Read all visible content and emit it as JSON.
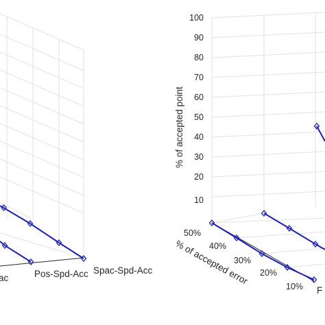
{
  "chart_data": [
    {
      "panel": "left",
      "type": "line",
      "view": "3d",
      "grid": true,
      "visible_labels": [
        "ac",
        "Pos-Spd-Acc",
        "Spac-Spd-Acc"
      ],
      "series": [
        {
          "points": [
            "upper",
            "upper",
            "upper",
            "upper"
          ]
        },
        {
          "points": [
            "lower",
            "lower",
            "lower"
          ]
        }
      ]
    },
    {
      "panel": "right",
      "type": "line",
      "view": "3d",
      "grid": true,
      "zlabel": "% of accepted point",
      "zticks": [
        "10",
        "20",
        "30",
        "40",
        "50",
        "60",
        "70",
        "80",
        "90",
        "100"
      ],
      "zlim": [
        0,
        100
      ],
      "ylabel": "% of accepted error",
      "yticks": [
        "50%",
        "40%",
        "30%",
        "20%",
        "10%"
      ],
      "visible_labels": [
        "F"
      ],
      "series": [
        {
          "note": "front line at z=0 along error axis"
        },
        {
          "note": "second line at z=0"
        },
        {
          "note": "partial line starting near z=46"
        }
      ]
    }
  ],
  "colors": {
    "line": "#1a1fbf",
    "grid": "#e2e2e2",
    "axis": "#262626",
    "text": "#262626"
  }
}
